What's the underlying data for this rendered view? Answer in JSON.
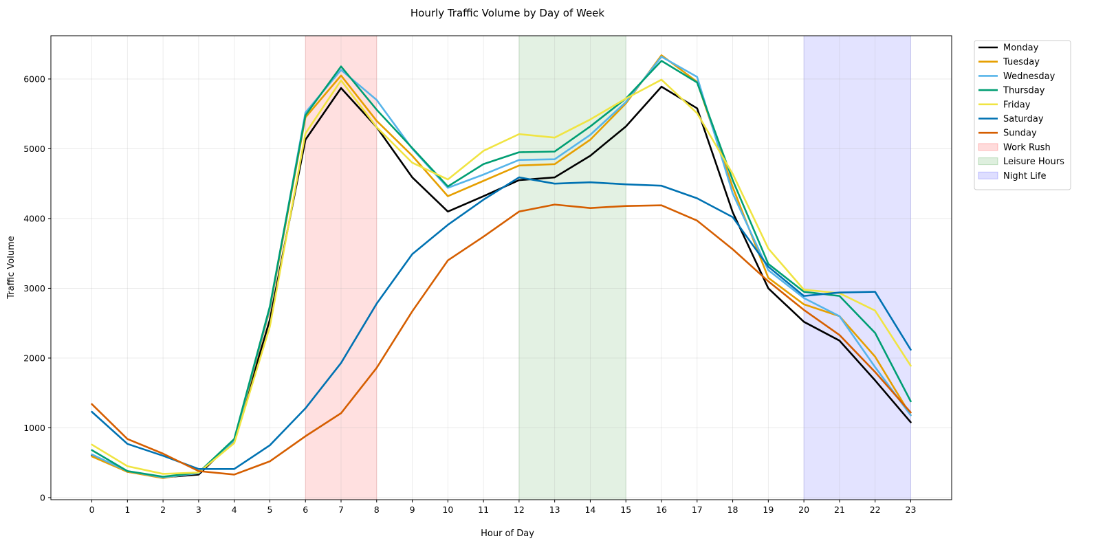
{
  "chart_data": {
    "type": "line",
    "title": "Hourly Traffic Volume by Day of Week",
    "xlabel": "Hour of Day",
    "ylabel": "Traffic Volume",
    "x": [
      0,
      1,
      2,
      3,
      4,
      5,
      6,
      7,
      8,
      9,
      10,
      11,
      12,
      13,
      14,
      15,
      16,
      17,
      18,
      19,
      20,
      21,
      22,
      23
    ],
    "xlim": [
      -1.15,
      24.15
    ],
    "ylim": [
      -30,
      6620
    ],
    "yticks": [
      0,
      1000,
      2000,
      3000,
      4000,
      5000,
      6000
    ],
    "grid": true,
    "legend_position": "outside-top-right",
    "series": [
      {
        "name": "Monday",
        "color": "#000000",
        "values": [
          610,
          370,
          290,
          330,
          820,
          2550,
          5130,
          5870,
          5310,
          4590,
          4100,
          4320,
          4550,
          4590,
          4900,
          5320,
          5890,
          5580,
          4090,
          3000,
          2520,
          2250,
          1680,
          1080
        ]
      },
      {
        "name": "Tuesday",
        "color": "#E69F00",
        "values": [
          590,
          370,
          280,
          360,
          800,
          2700,
          5450,
          6050,
          5400,
          4900,
          4320,
          4540,
          4760,
          4780,
          5130,
          5650,
          6340,
          5960,
          4450,
          3150,
          2770,
          2600,
          2020,
          1180
        ]
      },
      {
        "name": "Wednesday",
        "color": "#56B4E9",
        "values": [
          620,
          380,
          290,
          350,
          820,
          2720,
          5520,
          6130,
          5700,
          5000,
          4440,
          4630,
          4840,
          4850,
          5200,
          5670,
          6320,
          6030,
          4360,
          3260,
          2860,
          2600,
          1870,
          1180
        ]
      },
      {
        "name": "Thursday",
        "color": "#009E73",
        "values": [
          680,
          380,
          300,
          360,
          840,
          2740,
          5480,
          6180,
          5560,
          5010,
          4460,
          4780,
          4950,
          4960,
          5320,
          5720,
          6260,
          5950,
          4550,
          3350,
          2950,
          2890,
          2360,
          1380
        ]
      },
      {
        "name": "Friday",
        "color": "#F0E442",
        "values": [
          760,
          450,
          340,
          360,
          780,
          2450,
          5220,
          5980,
          5310,
          4800,
          4560,
          4970,
          5210,
          5160,
          5420,
          5720,
          5990,
          5510,
          4640,
          3570,
          2980,
          2930,
          2680,
          1890
        ]
      },
      {
        "name": "Saturday",
        "color": "#0072B2",
        "values": [
          1230,
          770,
          600,
          410,
          410,
          750,
          1280,
          1930,
          2780,
          3490,
          3910,
          4270,
          4590,
          4500,
          4520,
          4490,
          4470,
          4290,
          4020,
          3310,
          2890,
          2940,
          2950,
          2120
        ]
      },
      {
        "name": "Sunday",
        "color": "#D55E00",
        "values": [
          1340,
          840,
          630,
          380,
          330,
          520,
          880,
          1210,
          1860,
          2670,
          3400,
          3740,
          4100,
          4200,
          4150,
          4180,
          4190,
          3970,
          3560,
          3100,
          2690,
          2330,
          1800,
          1220
        ]
      }
    ],
    "bands": [
      {
        "name": "Work Rush",
        "x0": 6,
        "x1": 8,
        "color": "#FF0000",
        "opacity": 0.12
      },
      {
        "name": "Leisure Hours",
        "x0": 12,
        "x1": 15,
        "color": "#008000",
        "opacity": 0.11
      },
      {
        "name": "Night Life",
        "x0": 20,
        "x1": 23,
        "color": "#0000FF",
        "opacity": 0.11
      }
    ]
  }
}
